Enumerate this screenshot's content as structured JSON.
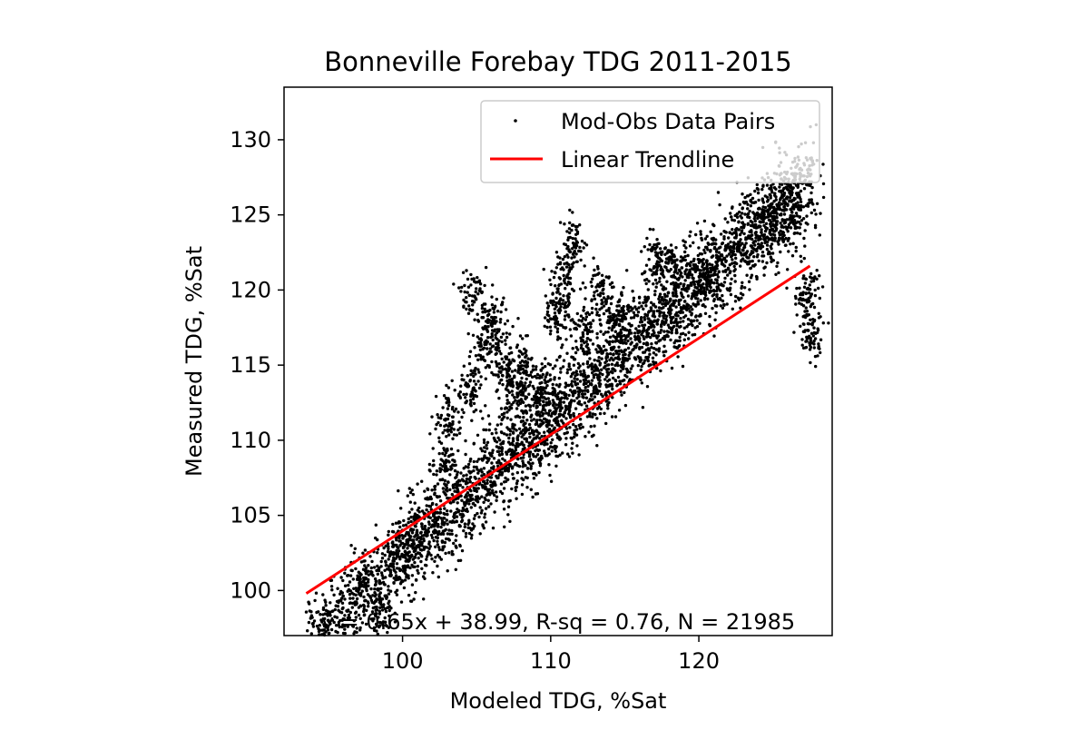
{
  "chart_data": {
    "type": "scatter",
    "title": "Bonneville Forebay TDG 2011-2015",
    "xlabel": "Modeled TDG, %Sat",
    "ylabel": "Measured TDG, %Sat",
    "xlim": [
      92,
      129
    ],
    "ylim": [
      97,
      133.5
    ],
    "xticks": [
      100,
      110,
      120
    ],
    "yticks": [
      100,
      105,
      110,
      115,
      120,
      125,
      130
    ],
    "grid": false,
    "legend_position": "top-right",
    "series": [
      {
        "name": "Mod-Obs Data Pairs",
        "kind": "scatter",
        "color": "#000000",
        "marker": "point",
        "n_points": 21985,
        "cloud": {
          "x_range": [
            93.5,
            127.5
          ],
          "slope": 0.9,
          "intercept": 12.4,
          "residual_sd": 1.6
        },
        "excursions": [
          [
            102.8,
            108.5
          ],
          [
            103.2,
            111.5
          ],
          [
            104.6,
            113.2
          ],
          [
            104.8,
            119.6
          ],
          [
            105.6,
            116.3
          ],
          [
            106.2,
            117.8
          ],
          [
            106.9,
            114.6
          ],
          [
            107.5,
            113.1
          ],
          [
            108.3,
            114.8
          ],
          [
            109.5,
            113.4
          ],
          [
            110.4,
            118.5
          ],
          [
            110.9,
            120.3
          ],
          [
            111.5,
            123.0
          ],
          [
            112.2,
            117.2
          ],
          [
            113.4,
            120.0
          ],
          [
            114.5,
            118.4
          ],
          [
            117.0,
            122.0
          ],
          [
            118.5,
            121.6
          ],
          [
            120.5,
            121.0
          ],
          [
            125.0,
            124.6
          ],
          [
            127.5,
            117.0
          ],
          [
            127.3,
            119.8
          ],
          [
            98.5,
            98.5
          ],
          [
            97.2,
            100.2
          ]
        ]
      },
      {
        "name": "Linear Trendline",
        "kind": "line",
        "color": "#ff0000",
        "x": [
          93.5,
          127.5
        ],
        "y": [
          99.8,
          121.6
        ]
      }
    ],
    "annotation": "y = 0.65x + 38.99, R-sq = 0.76, N = 21985"
  }
}
